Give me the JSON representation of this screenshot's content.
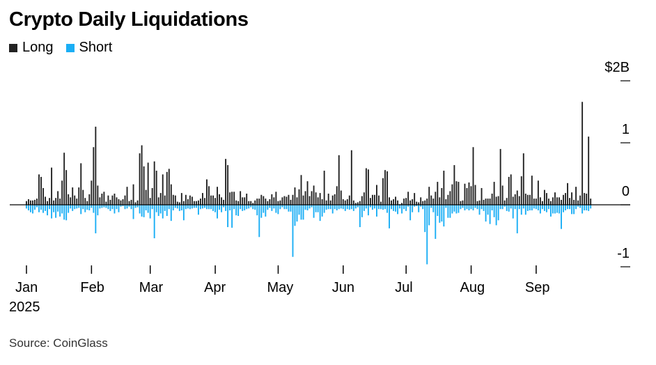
{
  "title": "Crypto Daily Liquidations",
  "source": "Source: CoinGlass",
  "colors": {
    "long": "#222222",
    "short": "#1aaef5",
    "axis": "#000000"
  },
  "chart_data": {
    "type": "bar",
    "title": "Crypto Daily Liquidations",
    "legend": {
      "position": "top-left",
      "entries": [
        "Long",
        "Short"
      ]
    },
    "x_range": [
      "2025-01-01",
      "2025-09-27"
    ],
    "x_ticks": [
      "Jan",
      "Feb",
      "Mar",
      "Apr",
      "May",
      "Jun",
      "Jul",
      "Aug",
      "Sep"
    ],
    "x_year_label": "2025",
    "y_ticks": [
      {
        "value": 2,
        "label": "$2B"
      },
      {
        "value": 1,
        "label": "1"
      },
      {
        "value": 0,
        "label": "0"
      },
      {
        "value": -1,
        "label": "-1"
      }
    ],
    "ylim": [
      -1,
      2
    ],
    "unit": "$B",
    "grid": false,
    "series": [
      {
        "name": "Long",
        "values": [
          0.06,
          0.09,
          0.07,
          0.07,
          0.08,
          0.1,
          0.49,
          0.45,
          0.27,
          0.13,
          0.06,
          0.11,
          0.6,
          0.07,
          0.11,
          0.22,
          0.1,
          0.39,
          0.84,
          0.56,
          0.17,
          0.12,
          0.28,
          0.15,
          0.1,
          0.28,
          0.67,
          0.24,
          0.11,
          0.06,
          0.17,
          0.39,
          0.93,
          1.26,
          0.31,
          0.12,
          0.18,
          0.21,
          0.05,
          0.15,
          0.08,
          0.15,
          0.18,
          0.12,
          0.09,
          0.07,
          0.09,
          0.15,
          0.29,
          0.06,
          0.08,
          0.33,
          0.04,
          0.07,
          0.83,
          0.96,
          0.62,
          0.24,
          0.68,
          0.11,
          0.27,
          0.7,
          0.55,
          0.12,
          0.19,
          0.49,
          0.15,
          0.53,
          0.58,
          0.33,
          0.16,
          0.15,
          0.05,
          0.04,
          0.19,
          0.06,
          0.16,
          0.09,
          0.15,
          0.13,
          0.06,
          0.06,
          0.07,
          0.1,
          0.19,
          0.11,
          0.41,
          0.3,
          0.15,
          0.15,
          0.11,
          0.29,
          0.17,
          0.12,
          0.08,
          0.74,
          0.64,
          0.2,
          0.21,
          0.21,
          0.07,
          0.06,
          0.22,
          0.12,
          0.12,
          0.18,
          0.06,
          0.06,
          0.03,
          0.07,
          0.1,
          0.1,
          0.16,
          0.14,
          0.1,
          0.06,
          0.09,
          0.17,
          0.12,
          0.21,
          0.06,
          0.07,
          0.12,
          0.14,
          0.13,
          0.16,
          0.08,
          0.16,
          0.28,
          0.12,
          0.25,
          0.48,
          0.15,
          0.22,
          0.38,
          0.14,
          0.22,
          0.31,
          0.2,
          0.12,
          0.19,
          0.09,
          0.55,
          0.07,
          0.18,
          0.07,
          0.15,
          0.17,
          0.3,
          0.8,
          0.23,
          0.09,
          0.07,
          0.09,
          0.15,
          0.88,
          0.07,
          0.03,
          0.04,
          0.06,
          0.14,
          0.2,
          0.59,
          0.57,
          0.11,
          0.16,
          0.16,
          0.32,
          0.15,
          0.05,
          0.43,
          0.56,
          0.54,
          0.12,
          0.07,
          0.09,
          0.13,
          0.07,
          0.01,
          0.03,
          0.1,
          0.11,
          0.21,
          0.07,
          0.09,
          0.19,
          0.05,
          0.04,
          0.12,
          0.06,
          0.07,
          0.1,
          0.29,
          0.15,
          0.1,
          0.21,
          0.37,
          0.12,
          0.27,
          0.55,
          0.09,
          0.16,
          0.22,
          0.33,
          0.64,
          0.38,
          0.37,
          0.06,
          0.07,
          0.34,
          0.27,
          0.36,
          0.3,
          0.93,
          0.32,
          0.06,
          0.07,
          0.27,
          0.08,
          0.1,
          0.1,
          0.1,
          0.18,
          0.37,
          0.13,
          0.14,
          0.9,
          0.31,
          0.07,
          0.11,
          0.45,
          0.49,
          0.13,
          0.17,
          0.23,
          0.14,
          0.46,
          0.83,
          0.18,
          0.16,
          0.16,
          0.47,
          0.1,
          0.1,
          0.39,
          0.12,
          0.06,
          0.24,
          0.19,
          0.1,
          0.06,
          0.12,
          0.2,
          0.12,
          0.12,
          0.08,
          0.16,
          0.19,
          0.35,
          0.11,
          0.2,
          0.08,
          0.29,
          0.07,
          0.15,
          1.66,
          0.19,
          0.18,
          1.1,
          0.1
        ]
      },
      {
        "name": "Short",
        "values": [
          -0.06,
          -0.09,
          -0.12,
          -0.14,
          -0.08,
          -0.04,
          -0.12,
          -0.08,
          -0.13,
          -0.1,
          -0.17,
          -0.07,
          -0.22,
          -0.12,
          -0.21,
          -0.11,
          -0.19,
          -0.14,
          -0.24,
          -0.25,
          -0.13,
          -0.06,
          -0.1,
          -0.07,
          -0.06,
          -0.05,
          -0.15,
          -0.07,
          -0.12,
          -0.08,
          -0.09,
          -0.05,
          -0.13,
          -0.46,
          -0.17,
          -0.06,
          -0.05,
          -0.04,
          -0.05,
          -0.07,
          -0.1,
          -0.07,
          -0.14,
          -0.07,
          -0.12,
          -0.03,
          -0.02,
          -0.07,
          -0.06,
          -0.03,
          -0.07,
          -0.23,
          -0.05,
          -0.04,
          -0.14,
          -0.19,
          -0.2,
          -0.09,
          -0.13,
          -0.22,
          -0.07,
          -0.54,
          -0.12,
          -0.18,
          -0.14,
          -0.22,
          -0.1,
          -0.18,
          -0.07,
          -0.26,
          -0.09,
          -0.05,
          -0.06,
          -0.1,
          -0.09,
          -0.25,
          -0.07,
          -0.06,
          -0.07,
          -0.06,
          -0.05,
          -0.05,
          -0.16,
          -0.07,
          -0.06,
          -0.05,
          -0.07,
          -0.07,
          -0.07,
          -0.1,
          -0.12,
          -0.22,
          -0.08,
          -0.12,
          -0.04,
          -0.1,
          -0.36,
          -0.09,
          -0.37,
          -0.07,
          -0.17,
          -0.18,
          -0.07,
          -0.1,
          -0.09,
          -0.07,
          -0.06,
          -0.04,
          -0.07,
          -0.08,
          -0.17,
          -0.52,
          -0.21,
          -0.13,
          -0.19,
          -0.08,
          -0.05,
          -0.1,
          -0.06,
          -0.13,
          -0.15,
          -0.07,
          -0.04,
          -0.07,
          -0.07,
          -0.11,
          -0.11,
          -0.84,
          -0.34,
          -0.27,
          -0.16,
          -0.24,
          -0.24,
          -0.08,
          -0.09,
          -0.06,
          -0.04,
          -0.21,
          -0.12,
          -0.12,
          -0.26,
          -0.19,
          -0.13,
          -0.08,
          -0.07,
          -0.07,
          -0.14,
          -0.07,
          -0.09,
          -0.07,
          -0.06,
          -0.07,
          -0.1,
          -0.07,
          -0.08,
          -0.07,
          -0.1,
          -0.06,
          -0.04,
          -0.36,
          -0.2,
          -0.1,
          -0.06,
          -0.17,
          -0.04,
          -0.08,
          -0.06,
          -0.19,
          -0.07,
          -0.07,
          -0.08,
          -0.07,
          -0.13,
          -0.38,
          -0.07,
          -0.1,
          -0.11,
          -0.15,
          -0.06,
          -0.14,
          -0.07,
          -0.1,
          -0.03,
          -0.25,
          -0.12,
          -0.03,
          -0.02,
          -0.12,
          -0.03,
          -0.07,
          -0.44,
          -0.96,
          -0.33,
          -0.05,
          -0.12,
          -0.55,
          -0.18,
          -0.29,
          -0.27,
          -0.35,
          -0.05,
          -0.21,
          -0.21,
          -0.14,
          -0.11,
          -0.14,
          -0.13,
          -0.07,
          -0.05,
          -0.09,
          -0.07,
          -0.09,
          -0.07,
          -0.09,
          -0.05,
          -0.07,
          -0.16,
          -0.07,
          -0.1,
          -0.27,
          -0.16,
          -0.31,
          -0.09,
          -0.2,
          -0.33,
          -0.25,
          -0.07,
          -0.07,
          -0.03,
          -0.1,
          -0.11,
          -0.06,
          -0.22,
          -0.07,
          -0.46,
          -0.07,
          -0.16,
          -0.06,
          -0.16,
          -0.1,
          -0.09,
          -0.09,
          -0.06,
          -0.07,
          -0.09,
          -0.14,
          -0.07,
          -0.1,
          -0.12,
          -0.07,
          -0.19,
          -0.14,
          -0.14,
          -0.13,
          -0.14,
          -0.39,
          -0.12,
          -0.09,
          -0.07,
          -0.07,
          -0.15,
          -0.15,
          -0.07,
          -0.03,
          -0.05,
          -0.14,
          -0.09,
          -0.09,
          -0.1,
          -0.06
        ]
      }
    ]
  }
}
